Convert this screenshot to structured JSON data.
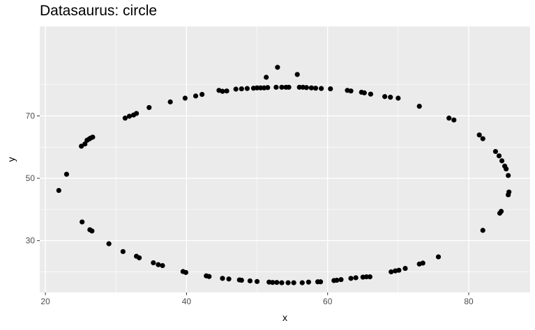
{
  "chart_data": {
    "type": "scatter",
    "title": "Datasaurus: circle",
    "xlabel": "x",
    "ylabel": "y",
    "xlim": [
      19.2,
      88.7
    ],
    "ylim": [
      13.4,
      98.7
    ],
    "x_ticks": [
      20,
      40,
      60,
      80
    ],
    "y_ticks": [
      30,
      50,
      70
    ],
    "grid": true,
    "background": "#ebebeb",
    "point_color": "#000000",
    "points": [
      {
        "x": 21.9,
        "y": 46.1
      },
      {
        "x": 23.0,
        "y": 51.3
      },
      {
        "x": 25.2,
        "y": 36.0
      },
      {
        "x": 26.3,
        "y": 33.5
      },
      {
        "x": 26.6,
        "y": 33.1
      },
      {
        "x": 29.0,
        "y": 29.0
      },
      {
        "x": 31.0,
        "y": 26.5
      },
      {
        "x": 32.9,
        "y": 25.0
      },
      {
        "x": 33.3,
        "y": 24.5
      },
      {
        "x": 35.3,
        "y": 22.9
      },
      {
        "x": 36.0,
        "y": 22.3
      },
      {
        "x": 36.6,
        "y": 22.0
      },
      {
        "x": 39.5,
        "y": 20.1
      },
      {
        "x": 39.9,
        "y": 19.8
      },
      {
        "x": 42.8,
        "y": 18.7
      },
      {
        "x": 43.2,
        "y": 18.5
      },
      {
        "x": 45.1,
        "y": 17.9
      },
      {
        "x": 46.0,
        "y": 17.7
      },
      {
        "x": 47.5,
        "y": 17.4
      },
      {
        "x": 47.8,
        "y": 17.3
      },
      {
        "x": 49.0,
        "y": 17.1
      },
      {
        "x": 50.0,
        "y": 16.9
      },
      {
        "x": 51.7,
        "y": 16.7
      },
      {
        "x": 52.2,
        "y": 16.6
      },
      {
        "x": 52.8,
        "y": 16.6
      },
      {
        "x": 53.5,
        "y": 16.5
      },
      {
        "x": 54.4,
        "y": 16.5
      },
      {
        "x": 55.2,
        "y": 16.5
      },
      {
        "x": 56.4,
        "y": 16.5
      },
      {
        "x": 57.3,
        "y": 16.7
      },
      {
        "x": 58.6,
        "y": 16.8
      },
      {
        "x": 59.0,
        "y": 16.8
      },
      {
        "x": 60.9,
        "y": 17.2
      },
      {
        "x": 61.3,
        "y": 17.3
      },
      {
        "x": 61.9,
        "y": 17.5
      },
      {
        "x": 63.3,
        "y": 17.9
      },
      {
        "x": 64.0,
        "y": 18.1
      },
      {
        "x": 65.0,
        "y": 18.3
      },
      {
        "x": 65.5,
        "y": 18.4
      },
      {
        "x": 66.0,
        "y": 18.4
      },
      {
        "x": 69.0,
        "y": 20.0
      },
      {
        "x": 69.6,
        "y": 20.3
      },
      {
        "x": 70.1,
        "y": 20.5
      },
      {
        "x": 71.0,
        "y": 21.1
      },
      {
        "x": 73.0,
        "y": 22.5
      },
      {
        "x": 73.5,
        "y": 22.8
      },
      {
        "x": 75.7,
        "y": 24.8
      },
      {
        "x": 82.0,
        "y": 33.3
      },
      {
        "x": 84.4,
        "y": 38.8
      },
      {
        "x": 84.6,
        "y": 39.4
      },
      {
        "x": 85.6,
        "y": 44.7
      },
      {
        "x": 85.7,
        "y": 45.6
      },
      {
        "x": 85.6,
        "y": 50.9
      },
      {
        "x": 85.3,
        "y": 53.0
      },
      {
        "x": 85.1,
        "y": 53.9
      },
      {
        "x": 84.7,
        "y": 55.6
      },
      {
        "x": 84.3,
        "y": 57.2
      },
      {
        "x": 83.8,
        "y": 58.6
      },
      {
        "x": 82.0,
        "y": 62.7
      },
      {
        "x": 81.5,
        "y": 63.9
      },
      {
        "x": 77.9,
        "y": 68.7
      },
      {
        "x": 77.2,
        "y": 69.3
      },
      {
        "x": 73.0,
        "y": 73.1
      },
      {
        "x": 70.0,
        "y": 75.7
      },
      {
        "x": 68.9,
        "y": 76.0
      },
      {
        "x": 68.1,
        "y": 76.2
      },
      {
        "x": 66.1,
        "y": 77.0
      },
      {
        "x": 65.2,
        "y": 77.4
      },
      {
        "x": 64.8,
        "y": 77.6
      },
      {
        "x": 63.3,
        "y": 78.0
      },
      {
        "x": 62.8,
        "y": 78.2
      },
      {
        "x": 60.4,
        "y": 78.7
      },
      {
        "x": 59.1,
        "y": 78.8
      },
      {
        "x": 58.3,
        "y": 78.9
      },
      {
        "x": 57.7,
        "y": 79.0
      },
      {
        "x": 57.0,
        "y": 79.1
      },
      {
        "x": 56.5,
        "y": 79.2
      },
      {
        "x": 56.0,
        "y": 79.2
      },
      {
        "x": 54.5,
        "y": 79.2
      },
      {
        "x": 54.1,
        "y": 79.2
      },
      {
        "x": 53.5,
        "y": 79.2
      },
      {
        "x": 52.7,
        "y": 79.2
      },
      {
        "x": 51.5,
        "y": 79.1
      },
      {
        "x": 51.0,
        "y": 79.0
      },
      {
        "x": 50.5,
        "y": 79.0
      },
      {
        "x": 50.0,
        "y": 79.0
      },
      {
        "x": 49.5,
        "y": 78.9
      },
      {
        "x": 48.6,
        "y": 78.8
      },
      {
        "x": 47.8,
        "y": 78.7
      },
      {
        "x": 47.0,
        "y": 78.6
      },
      {
        "x": 45.7,
        "y": 78.0
      },
      {
        "x": 45.1,
        "y": 77.9
      },
      {
        "x": 44.6,
        "y": 78.2
      },
      {
        "x": 42.2,
        "y": 76.9
      },
      {
        "x": 41.3,
        "y": 76.4
      },
      {
        "x": 39.8,
        "y": 75.7
      },
      {
        "x": 37.7,
        "y": 74.5
      },
      {
        "x": 34.7,
        "y": 72.7
      },
      {
        "x": 32.9,
        "y": 70.8
      },
      {
        "x": 32.5,
        "y": 70.3
      },
      {
        "x": 31.9,
        "y": 69.9
      },
      {
        "x": 31.3,
        "y": 69.3
      },
      {
        "x": 26.7,
        "y": 63.2
      },
      {
        "x": 26.4,
        "y": 62.9
      },
      {
        "x": 26.2,
        "y": 62.6
      },
      {
        "x": 25.9,
        "y": 62.2
      },
      {
        "x": 25.6,
        "y": 61.0
      },
      {
        "x": 25.1,
        "y": 60.3
      },
      {
        "x": 51.3,
        "y": 82.4
      },
      {
        "x": 52.9,
        "y": 85.6
      },
      {
        "x": 55.7,
        "y": 83.3
      }
    ]
  }
}
